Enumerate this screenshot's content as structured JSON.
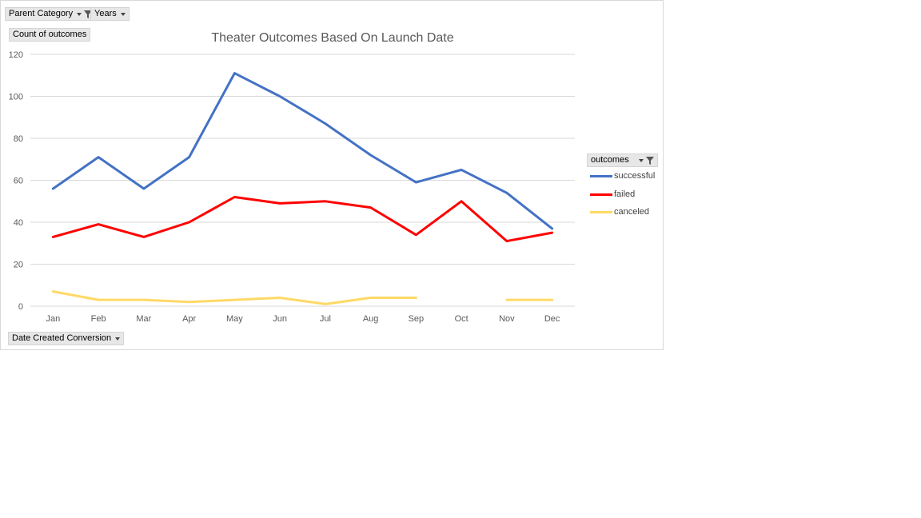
{
  "filters": {
    "parent_category": "Parent Category",
    "years": "Years",
    "value_field": "Count of outcomes",
    "axis_field": "Date Created Conversion",
    "legend_field": "outcomes"
  },
  "colors": {
    "successful": "#4472c4",
    "failed": "#ff0000",
    "canceled": "#ffd966",
    "gridline": "#d9d9d9",
    "axis_text": "#595959"
  },
  "chart_data": {
    "type": "line",
    "title": "Theater Outcomes Based On Launch Date",
    "xlabel": "",
    "ylabel": "",
    "ylim": [
      0,
      120
    ],
    "yticks": [
      0,
      20,
      40,
      60,
      80,
      100,
      120
    ],
    "grid": true,
    "legend_position": "right",
    "categories": [
      "Jan",
      "Feb",
      "Mar",
      "Apr",
      "May",
      "Jun",
      "Jul",
      "Aug",
      "Sep",
      "Oct",
      "Nov",
      "Dec"
    ],
    "series": [
      {
        "name": "successful",
        "values": [
          56,
          71,
          56,
          71,
          111,
          100,
          87,
          72,
          59,
          65,
          54,
          37
        ]
      },
      {
        "name": "failed",
        "values": [
          33,
          39,
          33,
          40,
          52,
          49,
          50,
          47,
          34,
          50,
          31,
          35
        ]
      },
      {
        "name": "canceled",
        "values": [
          7,
          3,
          3,
          2,
          3,
          4,
          1,
          4,
          4,
          null,
          3,
          3
        ]
      }
    ]
  }
}
